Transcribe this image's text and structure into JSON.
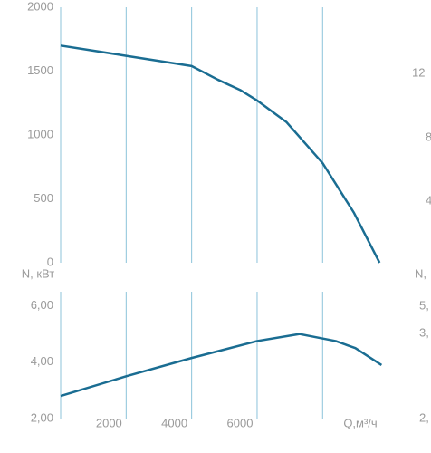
{
  "chart_data": [
    {
      "type": "line",
      "x": [
        0,
        2000,
        4000,
        4800,
        5500,
        6000,
        6900,
        8000,
        8960,
        9740
      ],
      "values": [
        1700,
        1620,
        1540,
        1433,
        1350,
        1270,
        1100,
        780,
        390,
        0
      ],
      "color": "#1a6d92",
      "xlim": [
        0,
        9900
      ],
      "ylim": [
        0,
        2000
      ],
      "yticks": [
        0,
        500,
        1000,
        1500,
        2000
      ],
      "xgrid": [
        2000,
        4000,
        6000,
        8000
      ]
    },
    {
      "type": "line",
      "ylabel": "N, кВт",
      "xlabel": "Q,м³/ч",
      "x": [
        0,
        2000,
        4000,
        6000,
        7300,
        8400,
        9000,
        9800
      ],
      "values": [
        2.8,
        3.5,
        4.15,
        4.75,
        5.0,
        4.75,
        4.5,
        3.9
      ],
      "color": "#1a6d92",
      "xlim": [
        0,
        9900
      ],
      "ylim": [
        2,
        6.5
      ],
      "yticks": [
        {
          "value": 2,
          "label": "2,00"
        },
        {
          "value": 4,
          "label": "4,00"
        },
        {
          "value": 6,
          "label": "6,00"
        }
      ],
      "xticks": [
        2000,
        4000,
        6000
      ],
      "xgrid": [
        2000,
        4000,
        6000,
        8000
      ]
    }
  ],
  "edge_labels": [
    "12",
    "8",
    "4",
    "N,",
    "5,",
    "3,",
    "2,"
  ]
}
